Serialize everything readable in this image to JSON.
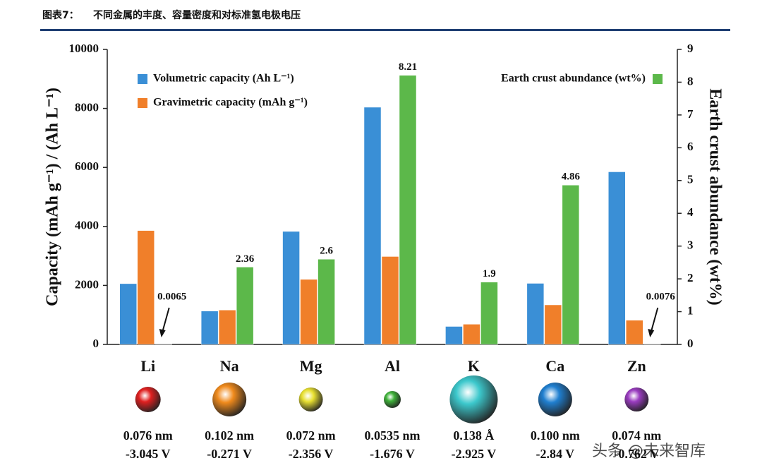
{
  "header": {
    "label": "图表7：",
    "title": "不同金属的丰度、容量密度和对标准氢电极电压"
  },
  "chart_data": {
    "type": "bar",
    "categories": [
      "Li",
      "Na",
      "Mg",
      "Al",
      "K",
      "Ca",
      "Zn"
    ],
    "series": [
      {
        "name": "Volumetric capacity (Ah L⁻¹)",
        "color": "#3a8fd6",
        "values": [
          2060,
          1130,
          3830,
          8040,
          610,
          2070,
          5850
        ]
      },
      {
        "name": "Gravimetric capacity (mAh g⁻¹)",
        "color": "#f07f2a",
        "values": [
          3860,
          1165,
          2205,
          2980,
          685,
          1340,
          820
        ]
      },
      {
        "name": "Earth crust abundance (wt%)",
        "color": "#5cb84a",
        "axis": "y2",
        "values": [
          0.0065,
          2.36,
          2.6,
          8.21,
          1.9,
          4.86,
          0.0076
        ]
      }
    ],
    "y_label": "Capacity (mAh g⁻¹) / (Ah L⁻¹)",
    "y2_label": "Earth crust abundance (wt%)",
    "ylim": [
      0,
      10000
    ],
    "yticks": [
      0,
      2000,
      4000,
      6000,
      8000,
      10000
    ],
    "y2lim": [
      0,
      9
    ],
    "y2ticks": [
      0,
      1,
      2,
      3,
      4,
      5,
      6,
      7,
      8,
      9
    ],
    "ion_info": [
      {
        "radius": "0.076 nm",
        "potential": "-3.045 V"
      },
      {
        "radius": "0.102 nm",
        "potential": "-0.271 V"
      },
      {
        "radius": "0.072 nm",
        "potential": "-2.356 V"
      },
      {
        "radius": "0.0535 nm",
        "potential": "-1.676 V"
      },
      {
        "radius": "0.138 Å",
        "potential": "-2.925 V"
      },
      {
        "radius": "0.100 nm",
        "potential": "-2.84 V"
      },
      {
        "radius": "0.074 nm",
        "potential": "-0.762 V"
      }
    ]
  },
  "watermark": "头条 @未来智库"
}
